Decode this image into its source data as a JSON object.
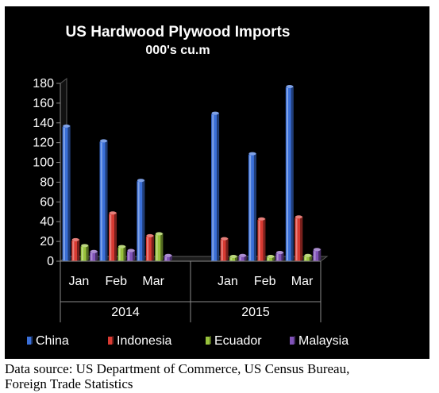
{
  "chart_data": {
    "type": "bar",
    "title": "US Hardwood Plywood Imports",
    "subtitle": "000's cu.m",
    "groups": [
      {
        "label": "2014",
        "categories": [
          "Jan",
          "Feb",
          "Mar"
        ]
      },
      {
        "label": "2015",
        "categories": [
          "Jan",
          "Feb",
          "Mar"
        ]
      }
    ],
    "series": [
      {
        "name": "China",
        "color": "#3a6fd8",
        "values": [
          136,
          121,
          81,
          149,
          108,
          176
        ]
      },
      {
        "name": "Indonesia",
        "color": "#d83a32",
        "values": [
          21,
          48,
          25,
          22,
          42,
          44
        ]
      },
      {
        "name": "Ecuador",
        "color": "#98c23c",
        "values": [
          15,
          14,
          27,
          4,
          4,
          5
        ]
      },
      {
        "name": "Malaysia",
        "color": "#8052b8",
        "values": [
          9,
          10,
          5,
          5,
          8,
          11
        ]
      }
    ],
    "ylim": [
      0,
      180
    ],
    "yticks": [
      "0",
      "20",
      "40",
      "60",
      "80",
      "100",
      "120",
      "140",
      "160",
      "180"
    ],
    "grid": false,
    "legend_position": "bottom",
    "background": "#000000",
    "text_color": "#ffffff"
  },
  "source": {
    "line1": "Data source: US Department of Commerce, US Census Bureau,",
    "line2": "Foreign Trade Statistics"
  }
}
